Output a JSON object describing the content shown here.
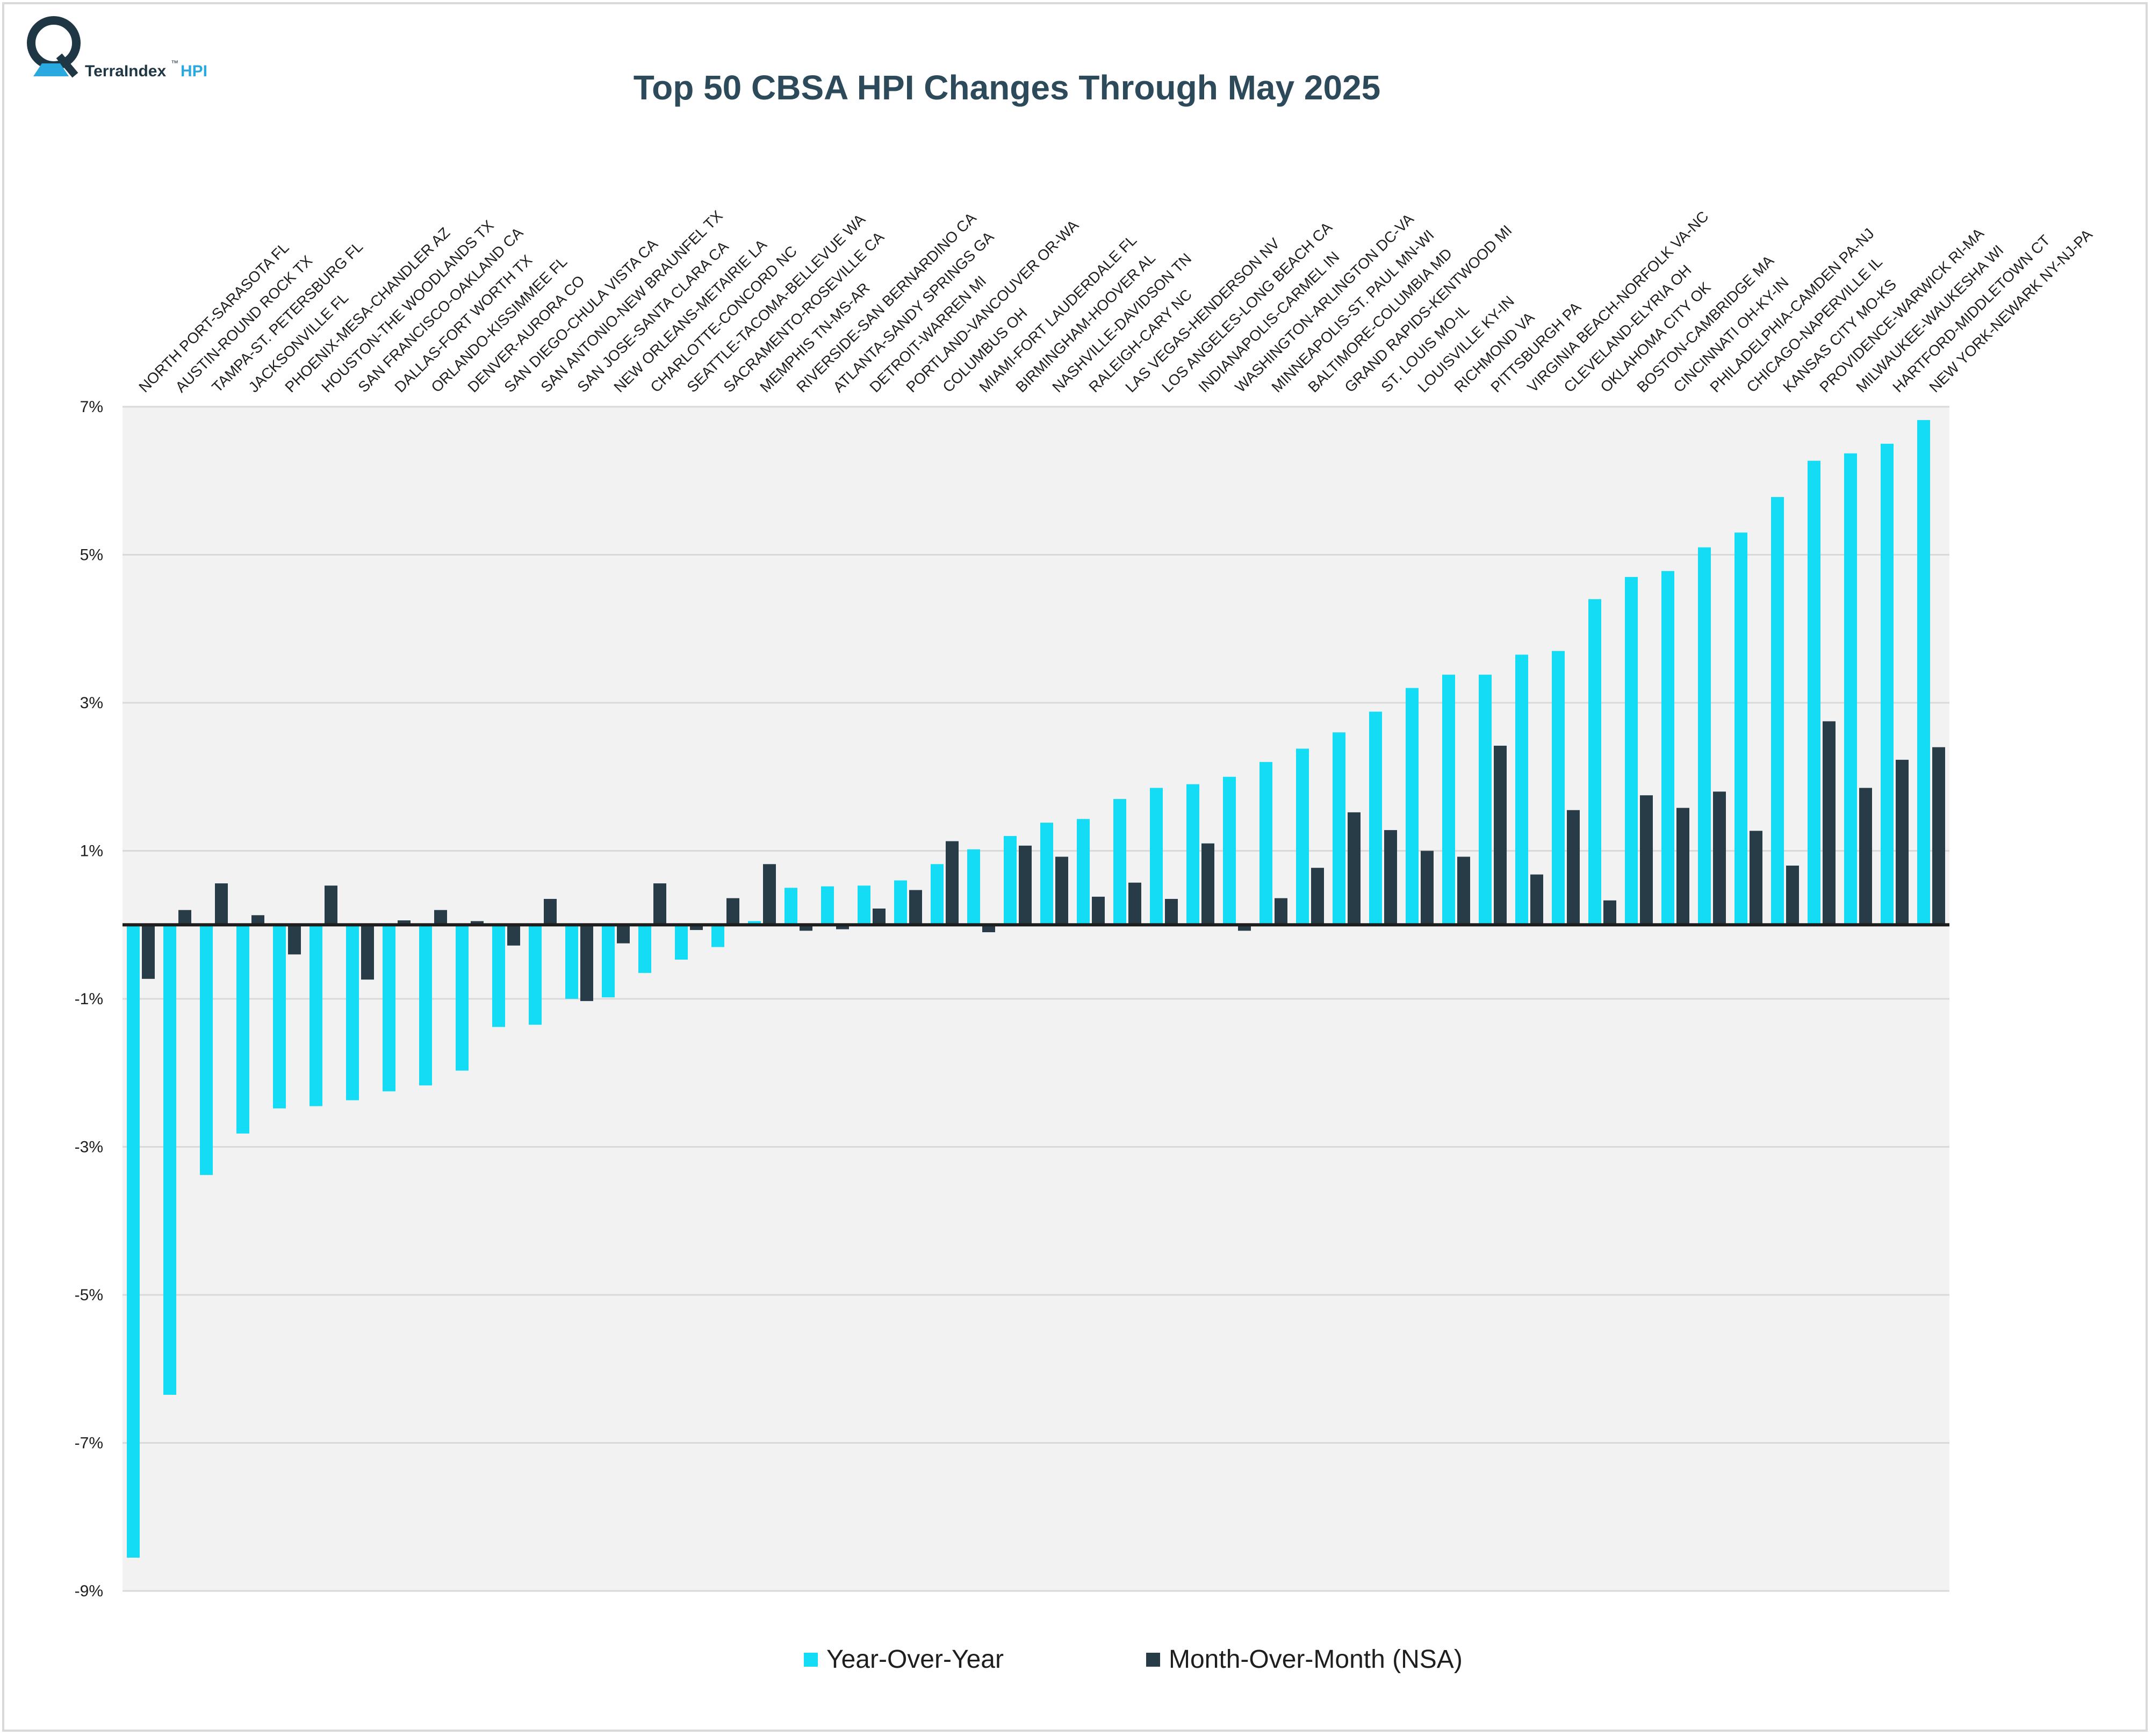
{
  "logo": {
    "brand": "TerraIndex",
    "tm": "™",
    "suffix": "HPI"
  },
  "colors": {
    "yoy": "#14dcf5",
    "mom": "#283c48",
    "plot_bg": "#f2f2f2",
    "grid": "#d9d9d9",
    "zero": "#1e1e1e"
  },
  "chart_data": {
    "type": "bar",
    "title": "Top 50 CBSA HPI Changes Through May 2025",
    "xlabel": "",
    "ylabel": "",
    "ylim": [
      -9,
      7
    ],
    "yticks": [
      7,
      5,
      3,
      1,
      -1,
      -3,
      -5,
      -7,
      -9
    ],
    "ytick_labels": [
      "7%",
      "5%",
      "3%",
      "1%",
      "-1%",
      "-3%",
      "-5%",
      "-7%",
      "-9%"
    ],
    "categories": [
      "NORTH PORT-SARASOTA FL",
      "AUSTIN-ROUND ROCK TX",
      "TAMPA-ST. PETERSBURG FL",
      "JACKSONVILLE FL",
      "PHOENIX-MESA-CHANDLER AZ",
      "HOUSTON-THE WOODLANDS TX",
      "SAN FRANCISCO-OAKLAND CA",
      "DALLAS-FORT WORTH TX",
      "ORLANDO-KISSIMMEE FL",
      "DENVER-AURORA CO",
      "SAN DIEGO-CHULA VISTA CA",
      "SAN ANTONIO-NEW BRAUNFEL TX",
      "SAN JOSE-SANTA CLARA CA",
      "NEW ORLEANS-METAIRIE LA",
      "CHARLOTTE-CONCORD NC",
      "SEATTLE-TACOMA-BELLEVUE WA",
      "SACRAMENTO-ROSEVILLE CA",
      "MEMPHIS TN-MS-AR",
      "RIVERSIDE-SAN BERNARDINO CA",
      "ATLANTA-SANDY SPRINGS GA",
      "DETROIT-WARREN MI",
      "PORTLAND-VANCOUVER OR-WA",
      "COLUMBUS OH",
      "MIAMI-FORT LAUDERDALE FL",
      "BIRMINGHAM-HOOVER AL",
      "NASHVILLE-DAVIDSON TN",
      "RALEIGH-CARY NC",
      "LAS VEGAS-HENDERSON NV",
      "LOS ANGELES-LONG BEACH CA",
      "INDIANAPOLIS-CARMEL IN",
      "WASHINGTON-ARLINGTON DC-VA",
      "MINNEAPOLIS-ST. PAUL MN-WI",
      "BALTIMORE-COLUMBIA MD",
      "GRAND RAPIDS-KENTWOOD MI",
      "ST. LOUIS MO-IL",
      "LOUISVILLE KY-IN",
      "RICHMOND VA",
      "PITTSBURGH PA",
      "VIRGINIA BEACH-NORFOLK VA-NC",
      "CLEVELAND-ELYRIA OH",
      "OKLAHOMA CITY OK",
      "BOSTON-CAMBRIDGE MA",
      "CINCINNATI OH-KY-IN",
      "PHILADELPHIA-CAMDEN PA-NJ",
      "CHICAGO-NAPERVILLE IL",
      "KANSAS CITY MO-KS",
      "PROVIDENCE-WARWICK RI-MA",
      "MILWAUKEE-WAUKESHA WI",
      "HARTFORD-MIDDLETOWN CT",
      "NEW YORK-NEWARK NY-NJ-PA"
    ],
    "series": [
      {
        "name": "Year-Over-Year",
        "values": [
          -8.55,
          -6.35,
          -3.38,
          -2.82,
          -2.48,
          -2.45,
          -2.37,
          -2.25,
          -2.17,
          -1.97,
          -1.38,
          -1.35,
          -1.0,
          -0.98,
          -0.65,
          -0.47,
          -0.3,
          0.05,
          0.5,
          0.52,
          0.53,
          0.6,
          0.82,
          1.02,
          1.2,
          1.38,
          1.43,
          1.7,
          1.85,
          1.9,
          2.0,
          2.2,
          2.38,
          2.6,
          2.88,
          3.2,
          3.38,
          3.38,
          3.65,
          3.7,
          4.4,
          4.7,
          4.78,
          5.1,
          5.3,
          5.78,
          6.27,
          6.37,
          6.5,
          6.82
        ]
      },
      {
        "name": "Month-Over-Month (NSA)",
        "values": [
          -0.73,
          0.2,
          0.56,
          0.13,
          -0.4,
          0.53,
          -0.74,
          0.06,
          0.2,
          0.05,
          -0.28,
          0.35,
          -1.03,
          -0.25,
          0.56,
          -0.07,
          0.36,
          0.82,
          -0.08,
          -0.06,
          0.22,
          0.47,
          1.13,
          -0.1,
          1.07,
          0.92,
          0.38,
          0.57,
          0.35,
          1.1,
          -0.08,
          0.36,
          0.77,
          1.52,
          1.28,
          1.0,
          0.92,
          2.42,
          0.68,
          1.55,
          0.33,
          1.75,
          1.58,
          1.8,
          1.27,
          0.8,
          2.75,
          1.85,
          2.23,
          2.4
        ]
      }
    ],
    "legend": [
      "Year-Over-Year",
      "Month-Over-Month (NSA)"
    ],
    "legend_position": "bottom",
    "grid": true
  }
}
